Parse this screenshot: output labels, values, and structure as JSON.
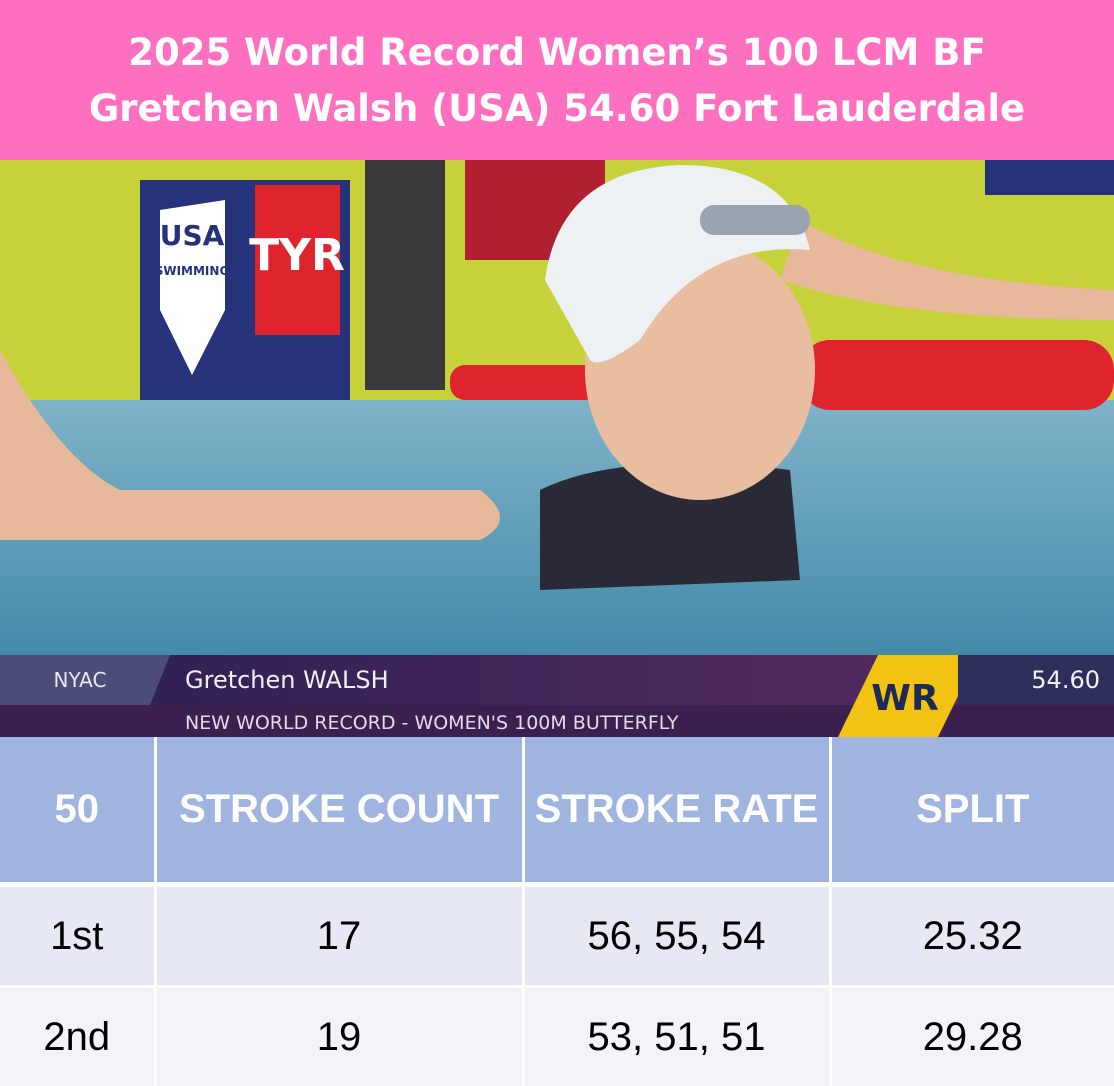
{
  "header": {
    "title_lines": [
      "2025 World Record Women’s 100 LCM BF",
      "Gretchen Walsh (USA) 54.60 Fort Lauderdale"
    ]
  },
  "photo": {
    "signs": [
      "USA",
      "SWIMMING",
      "TYR"
    ]
  },
  "broadcast": {
    "club": "NYAC",
    "name": "Gretchen WALSH",
    "caption": "NEW WORLD RECORD - WOMEN'S 100M BUTTERFLY",
    "badge": "WR",
    "time": "54.60"
  },
  "table": {
    "columns": [
      "50",
      "STROKE COUNT",
      "STROKE RATE",
      "SPLIT"
    ],
    "rows": [
      [
        "1st",
        17,
        "56, 55, 54",
        25.32
      ],
      [
        "2nd",
        19,
        "53, 51, 51",
        29.28
      ]
    ]
  }
}
